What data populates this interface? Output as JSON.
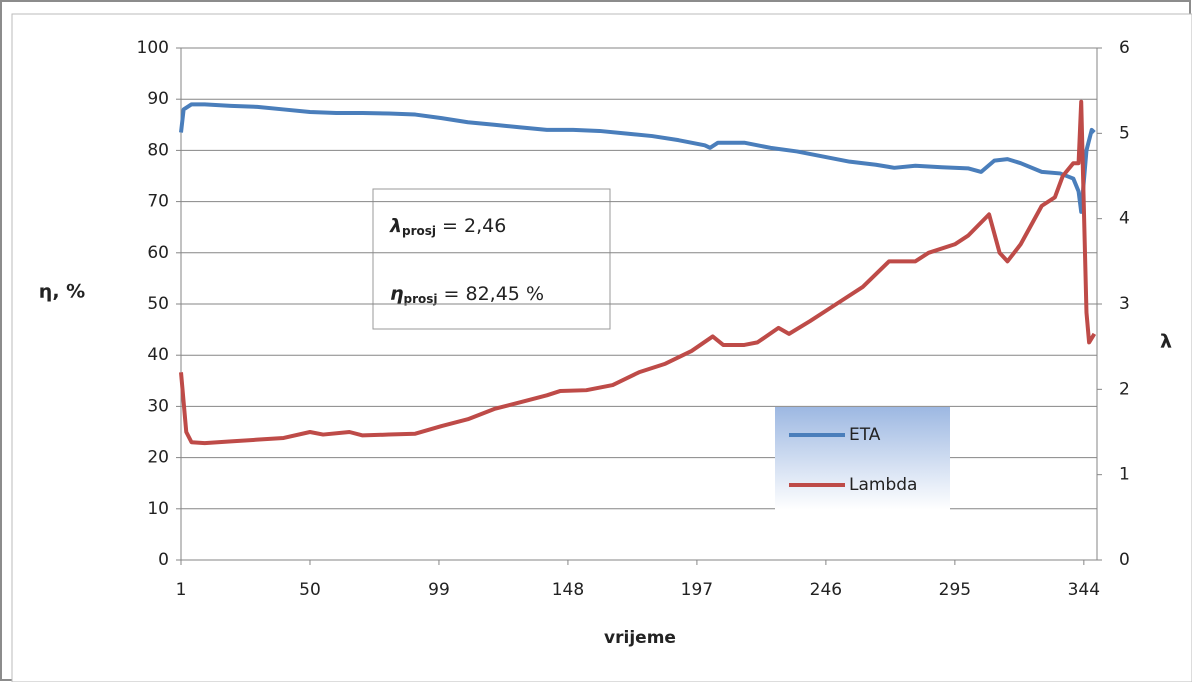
{
  "chart_data": {
    "type": "line",
    "x_label": "vrijeme",
    "y_label": "η, %",
    "y2_label": "λ",
    "xlim": [
      1,
      349
    ],
    "xticks": [
      1,
      50,
      99,
      148,
      197,
      246,
      295,
      344
    ],
    "ylim": [
      0,
      100
    ],
    "yticks": [
      0,
      10,
      20,
      30,
      40,
      50,
      60,
      70,
      80,
      90,
      100
    ],
    "y2lim": [
      0,
      6
    ],
    "y2ticks": [
      0,
      1,
      2,
      3,
      4,
      5,
      6
    ],
    "grid": true,
    "legend": "lower right",
    "annotations": [
      {
        "symbol": "λ",
        "sub": "prosj",
        "text": "= 2,46"
      },
      {
        "symbol": "η",
        "sub": "prosj",
        "text": "= 82,45 %"
      }
    ],
    "series": [
      {
        "name": "ETA",
        "color": "#4a7ebb",
        "x": [
          1,
          2,
          5,
          10,
          20,
          30,
          40,
          50,
          60,
          70,
          80,
          90,
          100,
          110,
          120,
          130,
          140,
          150,
          160,
          170,
          180,
          190,
          200,
          202,
          205,
          215,
          225,
          235,
          245,
          255,
          265,
          272,
          280,
          290,
          300,
          305,
          310,
          315,
          320,
          328,
          335,
          340,
          342,
          343,
          345,
          347,
          348
        ],
        "values": [
          83.5,
          88,
          89,
          89,
          88.7,
          88.5,
          88,
          87.5,
          87.3,
          87.3,
          87.2,
          87,
          86.3,
          85.5,
          85,
          84.5,
          84,
          84,
          83.8,
          83.3,
          82.8,
          82,
          81,
          80.5,
          81.5,
          81.5,
          80.5,
          79.8,
          78.8,
          77.8,
          77.2,
          76.6,
          77,
          76.7,
          76.5,
          75.8,
          78,
          78.3,
          77.5,
          75.8,
          75.5,
          74.5,
          72,
          68,
          80,
          84,
          83.5
        ]
      },
      {
        "name": "Lambda",
        "color": "#be4b48",
        "axis": "y2",
        "x": [
          1,
          3,
          5,
          10,
          20,
          30,
          40,
          50,
          55,
          65,
          70,
          80,
          90,
          100,
          110,
          120,
          130,
          140,
          145,
          155,
          165,
          175,
          185,
          195,
          203,
          207,
          215,
          220,
          228,
          232,
          240,
          250,
          260,
          270,
          280,
          285,
          295,
          300,
          308,
          312,
          315,
          320,
          328,
          333,
          336,
          340,
          342,
          343,
          345,
          346,
          348
        ],
        "values": [
          2.2,
          1.5,
          1.38,
          1.37,
          1.39,
          1.41,
          1.43,
          1.5,
          1.47,
          1.5,
          1.46,
          1.47,
          1.48,
          1.57,
          1.65,
          1.77,
          1.85,
          1.93,
          1.98,
          1.99,
          2.05,
          2.2,
          2.3,
          2.45,
          2.62,
          2.52,
          2.52,
          2.55,
          2.72,
          2.65,
          2.8,
          3.0,
          3.2,
          3.5,
          3.5,
          3.6,
          3.7,
          3.8,
          4.05,
          3.6,
          3.5,
          3.7,
          4.15,
          4.25,
          4.5,
          4.65,
          4.65,
          5.37,
          2.9,
          2.55,
          2.65
        ]
      }
    ]
  }
}
